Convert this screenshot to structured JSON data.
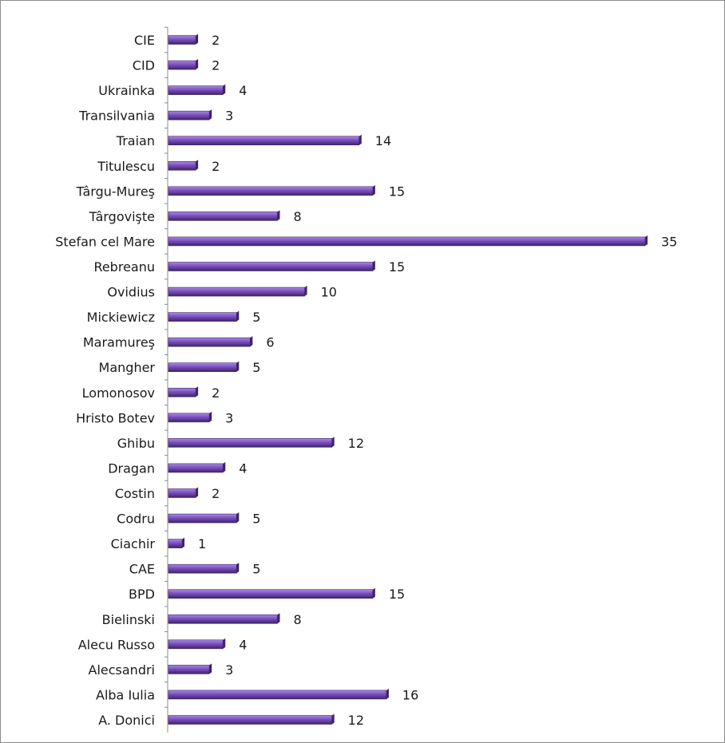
{
  "chart_data": {
    "type": "bar",
    "orientation": "horizontal",
    "categories": [
      "CIE",
      "CID",
      "Ukrainka",
      "Transilvania",
      "Traian",
      "Titulescu",
      "Târgu-Mureş",
      "Târgovişte",
      "Stefan cel Mare",
      "Rebreanu",
      "Ovidius",
      "Mickiewicz",
      "Maramureş",
      "Mangher",
      "Lomonosov",
      "Hristo Botev",
      "Ghibu",
      "Dragan",
      "Costin",
      "Codru",
      "Ciachir",
      "CAE",
      "BPD",
      "Bielinski",
      "Alecu Russo",
      "Alecsandri",
      "Alba Iulia",
      "A. Donici"
    ],
    "values": [
      2,
      2,
      4,
      3,
      14,
      2,
      15,
      8,
      35,
      15,
      10,
      5,
      6,
      5,
      2,
      3,
      12,
      4,
      2,
      5,
      1,
      5,
      15,
      8,
      4,
      3,
      16,
      12
    ],
    "data_labels": true,
    "grid": false,
    "legend": "none",
    "bar_color": "#7b4fc0",
    "bar_shade_color": "#3e2466",
    "bar_highlight_color": "#a98ae0"
  }
}
